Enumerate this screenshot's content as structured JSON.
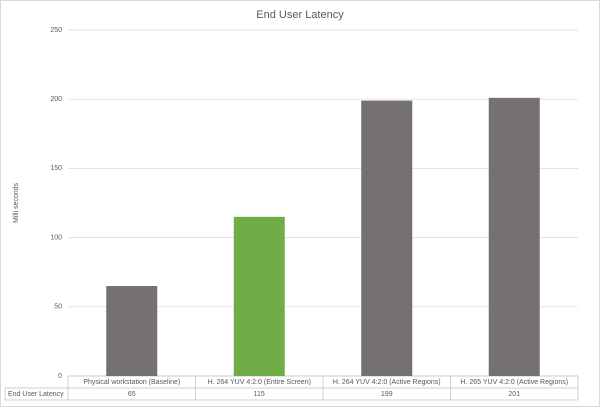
{
  "chart_data": {
    "type": "bar",
    "title": "End User Latency",
    "y_label": "Milli seconds",
    "categories": [
      "Physical workstation (Baseline)",
      "H. 264 YUV 4:2:0 (Entire Screen)",
      "H. 264 YUV 4:2:0 (Active Regions)",
      "H. 265 YUV 4:2:0 (Active Regions)"
    ],
    "series": [
      {
        "name": "End User Latency",
        "values": [
          65,
          115,
          199,
          201
        ],
        "colors": [
          "#767171",
          "#70ad47",
          "#767171",
          "#767171"
        ]
      }
    ],
    "ylim": [
      0,
      250
    ],
    "yticks": [
      0,
      50,
      100,
      150,
      200,
      250
    ],
    "grid": true
  }
}
